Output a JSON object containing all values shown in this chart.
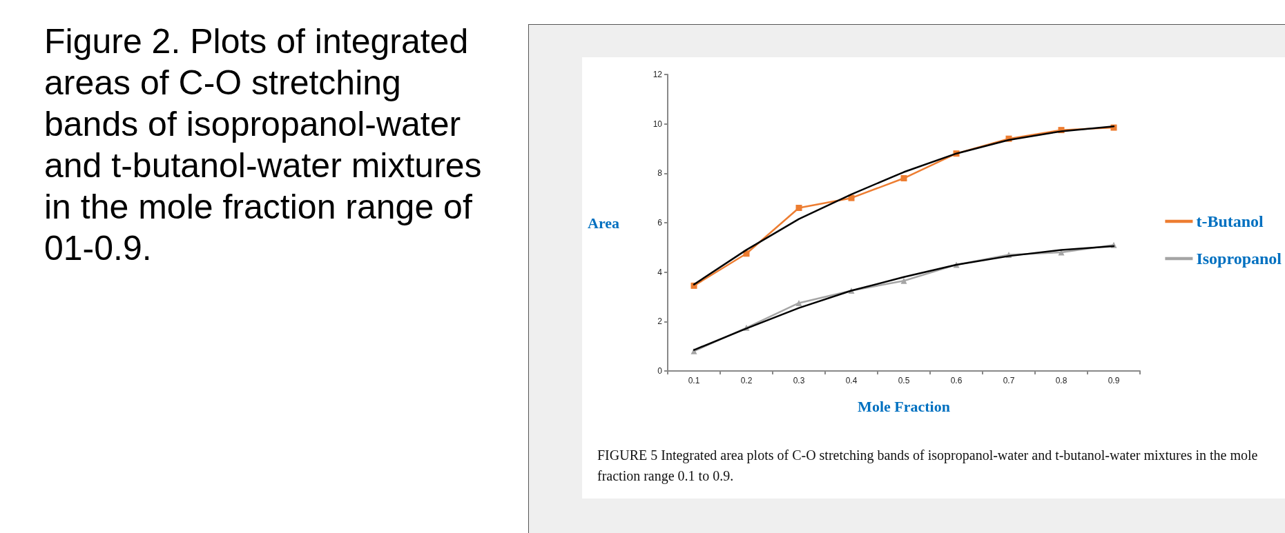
{
  "chart_data": {
    "type": "line",
    "title": "Figure 2. Plots of integrated areas of C-O stretching bands of isopropanol-water and t-butanol-water mixtures in the mole fraction range of 01-0.9.",
    "xlabel": "Mole Fraction",
    "ylabel": "Area",
    "annotations": [
      "FIGURE 5 Integrated area plots of C-O stretching bands of isopropanol-water and t-butanol-water mixtures in the mole fraction range 0.1 to 0.9."
    ],
    "categories": [
      "0.1",
      "0.2",
      "0.3",
      "0.4",
      "0.5",
      "0.6",
      "0.7",
      "0.8",
      "0.9"
    ],
    "series": [
      {
        "name": "t-Butanol",
        "color": "#ed7d31",
        "marker": "square",
        "values": [
          3.45,
          4.75,
          6.6,
          7.0,
          7.8,
          8.8,
          9.4,
          9.75,
          9.85
        ]
      },
      {
        "name": "Isopropanol",
        "color": "#a5a5a5",
        "marker": "triangle",
        "values": [
          0.8,
          1.75,
          2.75,
          3.25,
          3.65,
          4.3,
          4.7,
          4.8,
          5.1
        ]
      },
      {
        "color": "#000000",
        "marker": "none",
        "values": [
          3.5,
          4.9,
          6.15,
          7.15,
          8.05,
          8.8,
          9.35,
          9.7,
          9.9
        ]
      },
      {
        "color": "#000000",
        "marker": "none",
        "values": [
          0.85,
          1.72,
          2.55,
          3.25,
          3.8,
          4.3,
          4.65,
          4.9,
          5.05
        ]
      }
    ],
    "ylim": [
      0,
      12
    ],
    "yticks": [
      0,
      2,
      4,
      6,
      8,
      10,
      12
    ],
    "grid": false,
    "legend": "right",
    "line_style": "solid"
  }
}
